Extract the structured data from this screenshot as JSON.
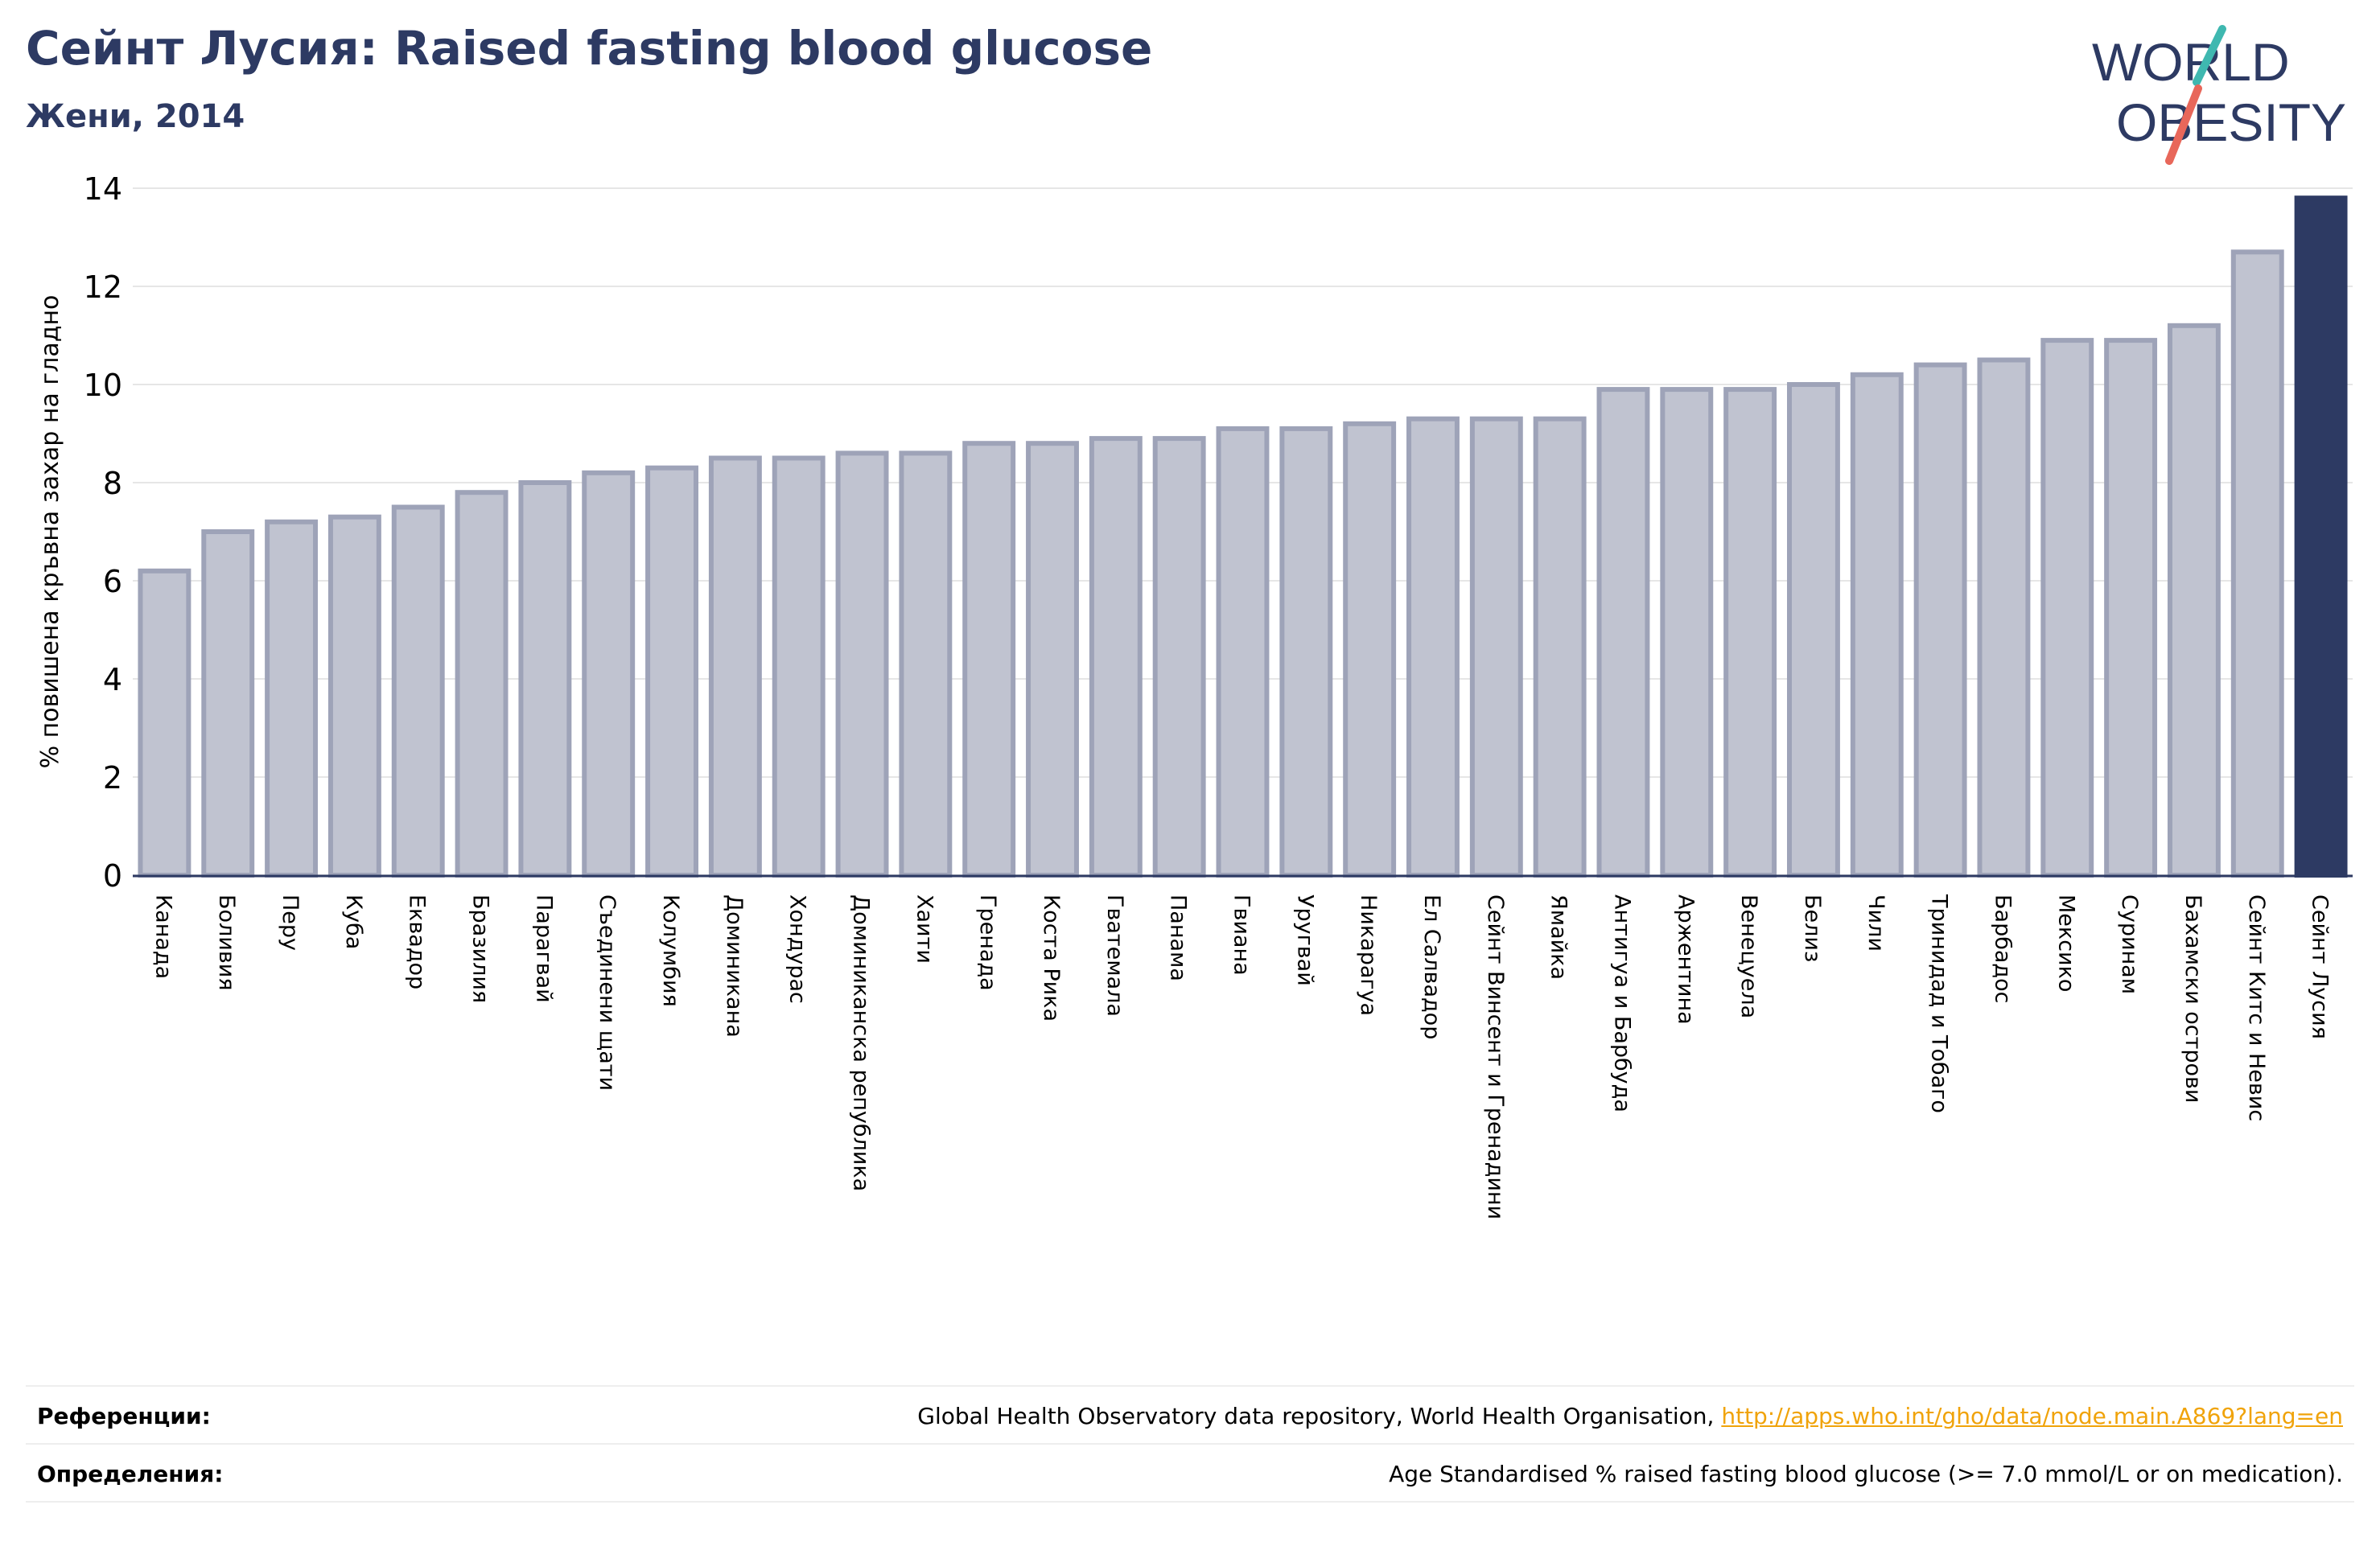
{
  "header": {
    "title": "Сейнт Лусия: Raised fasting blood glucose",
    "subtitle": "Жени, 2014"
  },
  "logo": {
    "line1": "WORLD",
    "line2": "OBESITY",
    "colors": {
      "text": "#2d3a63",
      "slash_teal": "#3fb8b0",
      "slash_red": "#e8675a"
    }
  },
  "chart_data": {
    "type": "bar",
    "ylabel": "% повишена кръвна захар на гладно",
    "ylim": [
      0,
      14
    ],
    "yticks": [
      0,
      2,
      4,
      6,
      8,
      10,
      12,
      14
    ],
    "grid": true,
    "highlight": "Сейнт Лусия",
    "colors": {
      "bar": "#c0c3d0",
      "bar_border": "#9ea3b8",
      "highlight": "#2d3a63",
      "axis": "#2d3a63",
      "grid": "#e6e6e6"
    },
    "categories": [
      "Канада",
      "Боливия",
      "Перу",
      "Куба",
      "Еквадор",
      "Бразилия",
      "Парагвай",
      "Съединени щати",
      "Колумбия",
      "Доминикана",
      "Хондурас",
      "Доминиканска република",
      "Хаити",
      "Гренада",
      "Коста Рика",
      "Гватемала",
      "Панама",
      "Гвиана",
      "Уругвай",
      "Никарагуа",
      "Ел Салвадор",
      "Сейнт Винсент и Гренадини",
      "Ямайка",
      "Антигуа и Барбуда",
      "Аржентина",
      "Венецуела",
      "Белиз",
      "Чили",
      "Тринидад и Тобаго",
      "Барбадос",
      "Мексико",
      "Суринам",
      "Бахамски острови",
      "Сейнт Китс и Невис",
      "Сейнт Лусия"
    ],
    "values": [
      6.2,
      7.0,
      7.2,
      7.3,
      7.5,
      7.8,
      8.0,
      8.2,
      8.3,
      8.5,
      8.5,
      8.6,
      8.6,
      8.8,
      8.8,
      8.9,
      8.9,
      9.1,
      9.1,
      9.2,
      9.3,
      9.3,
      9.3,
      9.9,
      9.9,
      9.9,
      10.0,
      10.2,
      10.4,
      10.5,
      10.9,
      10.9,
      11.2,
      12.7,
      13.8
    ]
  },
  "footer": {
    "references_label": "Референции:",
    "references_text": "Global Health Observatory data repository, World Health Organisation,",
    "references_link": "http://apps.who.int/gho/data/node.main.A869?lang=en",
    "definitions_label": "Определения:",
    "definitions_text": "Age Standardised % raised fasting blood glucose (>= 7.0 mmol/L or on medication)."
  }
}
